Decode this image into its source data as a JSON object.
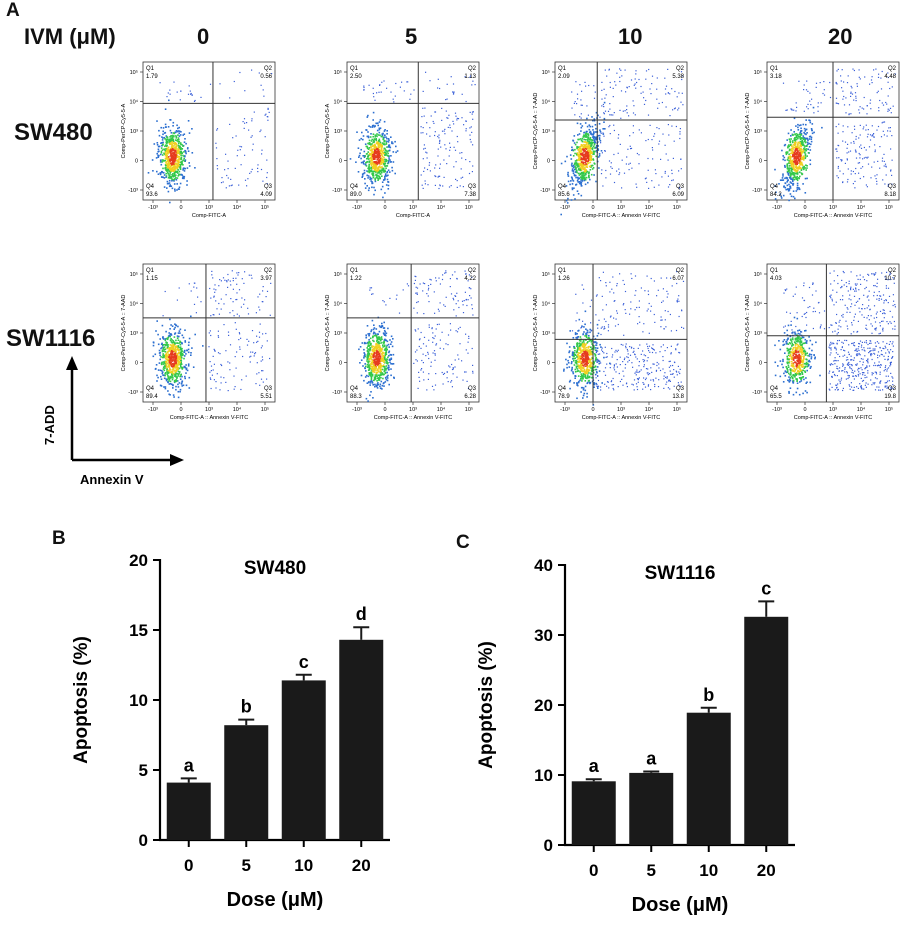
{
  "panel_labels": {
    "a": "A",
    "b": "B",
    "c": "C"
  },
  "flow": {
    "header_label": "IVM (μM)",
    "doses": [
      "0",
      "5",
      "10",
      "20"
    ],
    "rows": [
      {
        "name": "SW480",
        "x_axis_label": [
          "Comp-FITC-A",
          "Comp-FITC-A",
          "Comp-FITC-A :: Annexin V-FITC",
          "Comp-FITC-A :: Annexin V-FITC"
        ],
        "y_axis_label": [
          "Comp-PerCP-Cy5-5-A",
          "Comp-PerCP-Cy5-5-A",
          "Comp-PerCP-Cy5-5-A :: 7-AAD",
          "Comp-PerCP-Cy5-5-A :: 7-AAD"
        ],
        "plots": [
          {
            "q1": "1.79",
            "q2": "0.56",
            "q3": "4.09",
            "q4": "93.6"
          },
          {
            "q1": "2.50",
            "q2": "1.13",
            "q3": "7.38",
            "q4": "89.0"
          },
          {
            "q1": "2.09",
            "q2": "5.38",
            "q3": "6.09",
            "q4": "85.6"
          },
          {
            "q1": "3.18",
            "q2": "4.48",
            "q3": "8.18",
            "q4": "84.2"
          }
        ]
      },
      {
        "name": "SW1116",
        "x_axis_label": [
          "Comp-FITC-A :: Annexin V-FITC",
          "Comp-FITC-A :: Annexin V-FITC",
          "Comp-FITC-A :: Annexin V-FITC",
          "Comp-FITC-A :: Annexin V-FITC"
        ],
        "y_axis_label": [
          "Comp-PerCP-Cy5-5-A :: 7-AAD",
          "Comp-PerCP-Cy5-5-A :: 7-AAD",
          "Comp-PerCP-Cy5-5-A :: 7-AAD",
          "Comp-PerCP-Cy5-5-A :: 7-AAD"
        ],
        "plots": [
          {
            "q1": "1.15",
            "q2": "3.97",
            "q3": "5.51",
            "q4": "89.4"
          },
          {
            "q1": "1.22",
            "q2": "4.22",
            "q3": "6.28",
            "q4": "88.3"
          },
          {
            "q1": "1.26",
            "q2": "6.07",
            "q3": "13.8",
            "q4": "78.9"
          },
          {
            "q1": "4.03",
            "q2": "10.7",
            "q3": "19.8",
            "q4": "65.5"
          }
        ]
      }
    ],
    "quadrant_names": {
      "q1": "Q1",
      "q2": "Q2",
      "q3": "Q3",
      "q4": "Q4"
    },
    "x_ticks": [
      "-10³",
      "0",
      "10³",
      "10⁴",
      "10⁵"
    ],
    "y_ticks": [
      "10⁵",
      "10⁴",
      "10³",
      "0",
      "-10³"
    ],
    "axis_indicator": {
      "y": "7-ADD",
      "x": "Annexin V"
    }
  },
  "chart_data": [
    {
      "type": "bar",
      "panel": "B",
      "title": "SW480",
      "categories": [
        "0",
        "5",
        "10",
        "20"
      ],
      "values": [
        4.1,
        8.2,
        11.4,
        14.3
      ],
      "errors": [
        0.3,
        0.4,
        0.4,
        0.9
      ],
      "significance": [
        "a",
        "b",
        "c",
        "d"
      ],
      "xlabel": "Dose (μM)",
      "ylabel": "Apoptosis (%)",
      "ylim": [
        0,
        20
      ],
      "yticks": [
        0,
        5,
        10,
        15,
        20
      ]
    },
    {
      "type": "bar",
      "panel": "C",
      "title": "SW1116",
      "categories": [
        "0",
        "5",
        "10",
        "20"
      ],
      "values": [
        9.1,
        10.3,
        18.9,
        32.6
      ],
      "errors": [
        0.3,
        0.2,
        0.7,
        2.2
      ],
      "significance": [
        "a",
        "a",
        "b",
        "c"
      ],
      "xlabel": "Dose (μM)",
      "ylabel": "Apoptosis (%)",
      "ylim": [
        0,
        40
      ],
      "yticks": [
        0,
        10,
        20,
        30,
        40
      ]
    }
  ]
}
